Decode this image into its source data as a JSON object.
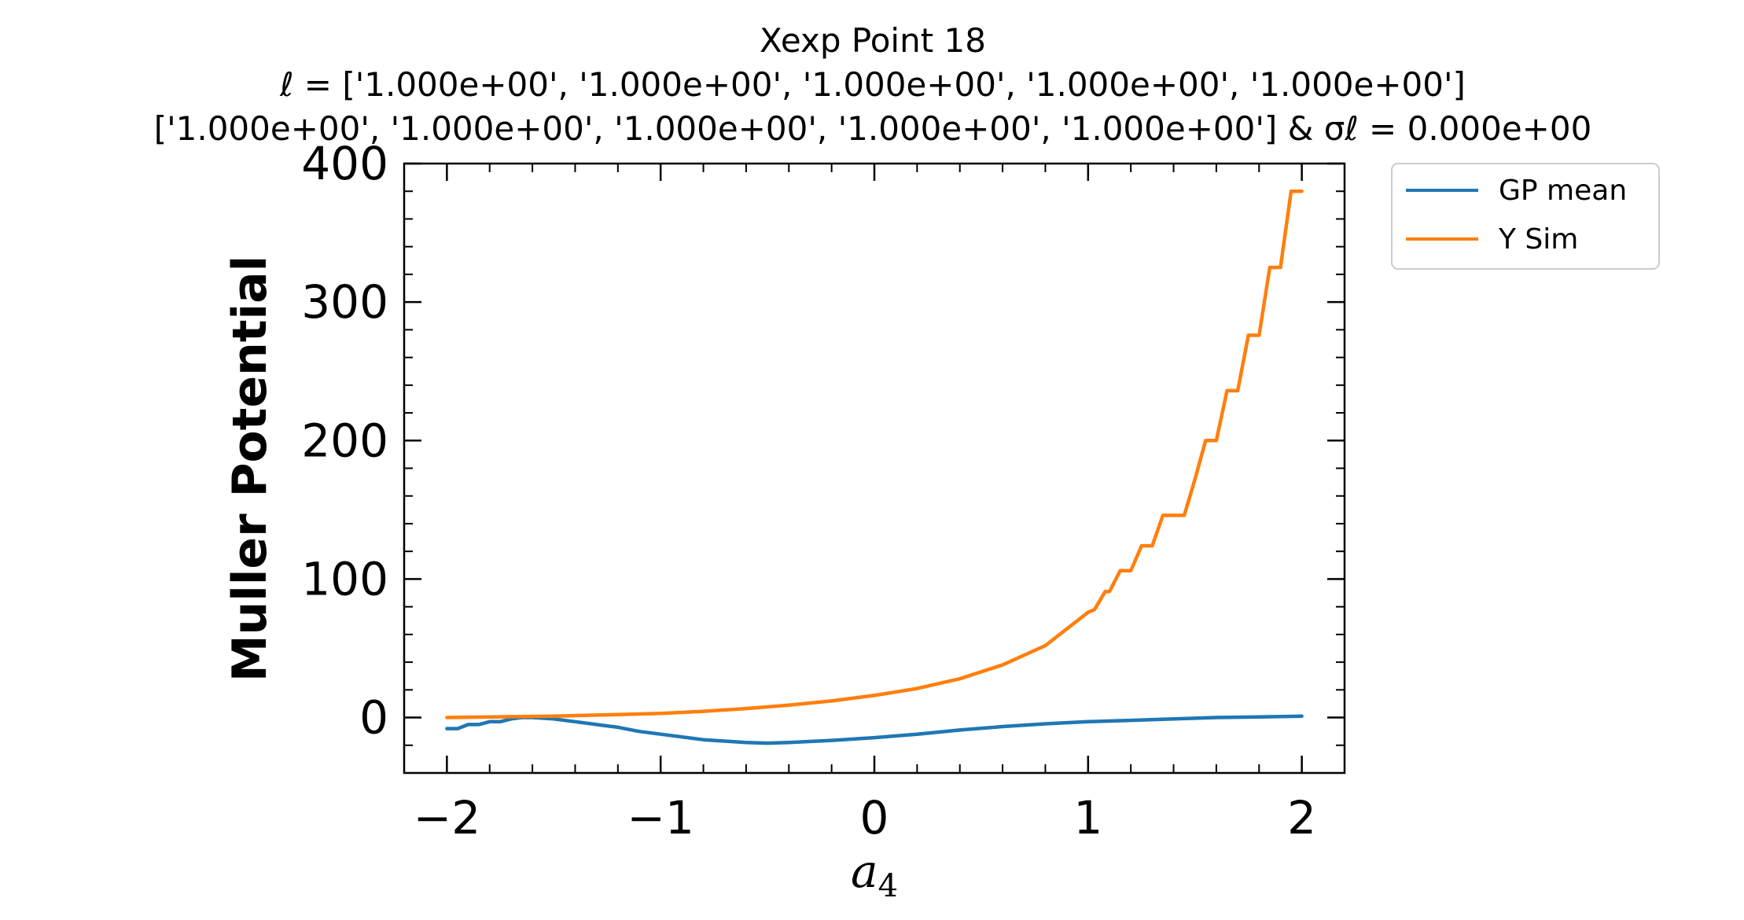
{
  "chart_data": {
    "type": "line",
    "title": "Xexp Point 18",
    "subtitle_lines": [
      "ℓ = ['1.000e+00', '1.000e+00', '1.000e+00', '1.000e+00', '1.000e+00']",
      "['1.000e+00', '1.000e+00', '1.000e+00', '1.000e+00', '1.000e+00'] & σℓ = 0.000e+00"
    ],
    "xlabel": "a",
    "xlabel_sub": "4",
    "ylabel": "Muller Potential",
    "xlim": [
      -2.2,
      2.2
    ],
    "ylim": [
      -40,
      400
    ],
    "xticks": [
      -2,
      -1,
      0,
      1,
      2
    ],
    "xtick_labels": [
      "−2",
      "−1",
      "0",
      "1",
      "2"
    ],
    "yticks": [
      0,
      100,
      200,
      300,
      400
    ],
    "ytick_labels": [
      "0",
      "100",
      "200",
      "300",
      "400"
    ],
    "grid": false,
    "legend_placement": "outside top-right",
    "series": [
      {
        "name": "GP mean",
        "color": "#1f77b4",
        "x": [
          -2.0,
          -1.95,
          -1.9,
          -1.85,
          -1.8,
          -1.75,
          -1.7,
          -1.65,
          -1.6,
          -1.5,
          -1.4,
          -1.3,
          -1.2,
          -1.1,
          -1.0,
          -0.8,
          -0.6,
          -0.5,
          -0.4,
          -0.2,
          0.0,
          0.2,
          0.4,
          0.6,
          0.8,
          1.0,
          1.2,
          1.4,
          1.6,
          1.8,
          2.0
        ],
        "y": [
          -8,
          -8,
          -5,
          -5,
          -3,
          -3,
          -1,
          0,
          0,
          -1,
          -3,
          -5,
          -7,
          -10,
          -12,
          -16,
          -18,
          -18.5,
          -18,
          -16.5,
          -14.5,
          -12,
          -9,
          -6.5,
          -4.5,
          -3,
          -2,
          -1,
          0,
          0.5,
          1
        ]
      },
      {
        "name": "Y Sim",
        "color": "#ff7f0e",
        "x": [
          -2.0,
          -1.5,
          -1.0,
          -0.8,
          -0.6,
          -0.4,
          -0.2,
          0.0,
          0.2,
          0.4,
          0.6,
          0.8,
          1.0,
          1.03,
          1.08,
          1.1,
          1.15,
          1.2,
          1.25,
          1.3,
          1.35,
          1.4,
          1.45,
          1.5,
          1.55,
          1.6,
          1.65,
          1.7,
          1.75,
          1.8,
          1.85,
          1.9,
          1.95,
          2.0
        ],
        "y": [
          0,
          1,
          3,
          4.5,
          6.5,
          9,
          12,
          16,
          21,
          28,
          38,
          52,
          76,
          78,
          91,
          91,
          106,
          106,
          124,
          124,
          146,
          146,
          146,
          172,
          200,
          200,
          236,
          236,
          276,
          276,
          325,
          325,
          380,
          380
        ]
      }
    ]
  }
}
